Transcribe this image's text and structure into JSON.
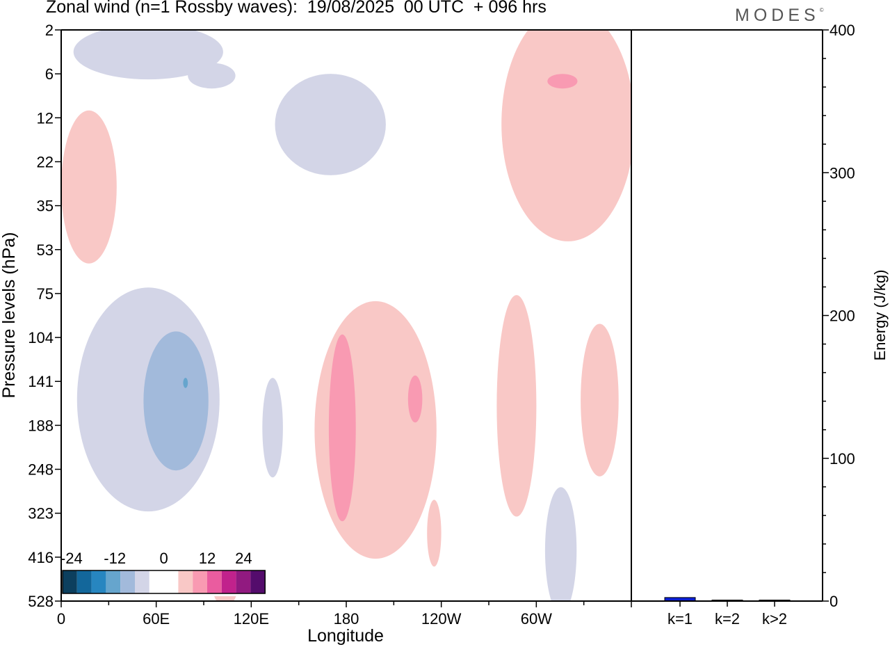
{
  "title": "Zonal wind (n=1 Rossby waves):  19/08/2025  00 UTC  + 096 hrs",
  "brand": "MODES",
  "brand_mark": "©",
  "chart_data": [
    {
      "type": "heatmap",
      "title": "Zonal wind (n=1 Rossby waves):  19/08/2025  00 UTC  + 096 hrs",
      "xlabel": "Longitude",
      "ylabel": "Pressure levels (hPa)",
      "x_tick_labels": [
        "0",
        "60E",
        "120E",
        "180",
        "120W",
        "60W"
      ],
      "x_ticks_deg": [
        0,
        60,
        120,
        180,
        240,
        300
      ],
      "xlim_deg": [
        0,
        360
      ],
      "y_tick_labels": [
        "2",
        "6",
        "12",
        "22",
        "35",
        "53",
        "75",
        "104",
        "141",
        "188",
        "248",
        "323",
        "416",
        "528"
      ],
      "y_scale": "level-index (top = 2 hPa, bottom = 528 hPa)",
      "colorbar": {
        "labels": [
          "-24",
          "-12",
          "0",
          "12",
          "24"
        ],
        "colors": [
          "#0c3f5e",
          "#13679b",
          "#2786c0",
          "#66a5cd",
          "#a2badb",
          "#d3d5e7",
          "#ffffff",
          "#ffffff",
          "#f9c8c6",
          "#f99ab2",
          "#ea5c9f",
          "#c1228c",
          "#911a80",
          "#540c6c"
        ]
      },
      "regions": [
        {
          "sign": "negative",
          "level": -4,
          "lon_range": [
            10,
            100
          ],
          "p_range": [
            2,
            6
          ]
        },
        {
          "sign": "negative",
          "level": -4,
          "lon_range": [
            80,
            110
          ],
          "p_range": [
            5,
            8
          ]
        },
        {
          "sign": "negative",
          "level": -4,
          "lon_range": [
            135,
            205
          ],
          "p_range": [
            6,
            26
          ]
        },
        {
          "sign": "negative",
          "level": -4,
          "lon_range": [
            10,
            100
          ],
          "p_range": [
            72,
            320
          ]
        },
        {
          "sign": "negative",
          "level": -8,
          "lon_range": [
            52,
            93
          ],
          "p_range": [
            100,
            250
          ]
        },
        {
          "sign": "negative",
          "level": -12,
          "lon_range": [
            77,
            80
          ],
          "p_range": [
            138,
            148
          ]
        },
        {
          "sign": "negative",
          "level": -4,
          "lon_range": [
            127,
            140
          ],
          "p_range": [
            138,
            262
          ]
        },
        {
          "sign": "negative",
          "level": -4,
          "lon_range": [
            306,
            325
          ],
          "p_range": [
            300,
            528
          ]
        },
        {
          "sign": "positive",
          "level": 4,
          "lon_range": [
            0,
            35
          ],
          "p_range": [
            11,
            60
          ]
        },
        {
          "sign": "positive",
          "level": 4,
          "lon_range": [
            280,
            360
          ],
          "p_range": [
            2,
            40
          ]
        },
        {
          "sign": "positive",
          "level": 8,
          "lon_range": [
            307,
            326
          ],
          "p_range": [
            6,
            8
          ]
        },
        {
          "sign": "positive",
          "level": 4,
          "lon_range": [
            160,
            237
          ],
          "p_range": [
            80,
            420
          ]
        },
        {
          "sign": "positive",
          "level": 8,
          "lon_range": [
            169,
            186
          ],
          "p_range": [
            102,
            340
          ]
        },
        {
          "sign": "positive",
          "level": 8,
          "lon_range": [
            219,
            228
          ],
          "p_range": [
            136,
            185
          ]
        },
        {
          "sign": "positive",
          "level": 4,
          "lon_range": [
            231,
            240
          ],
          "p_range": [
            300,
            440
          ]
        },
        {
          "sign": "positive",
          "level": 4,
          "lon_range": [
            275,
            300
          ],
          "p_range": [
            76,
            330
          ]
        },
        {
          "sign": "positive",
          "level": 4,
          "lon_range": [
            328,
            352
          ],
          "p_range": [
            95,
            260
          ]
        },
        {
          "sign": "positive",
          "level": 4,
          "lon_range": [
            95,
            112
          ],
          "p_range": [
            410,
            528
          ]
        }
      ]
    },
    {
      "type": "bar",
      "categories": [
        "k=1",
        "k=2",
        "k>2"
      ],
      "values": [
        2.5,
        0.4,
        0.4
      ],
      "ylabel": "Energy (J/kg)",
      "ylim": [
        0,
        400
      ],
      "y_tick_labels": [
        "0",
        "100",
        "200",
        "300",
        "400"
      ],
      "bar_color": "#0b1fd6"
    }
  ]
}
